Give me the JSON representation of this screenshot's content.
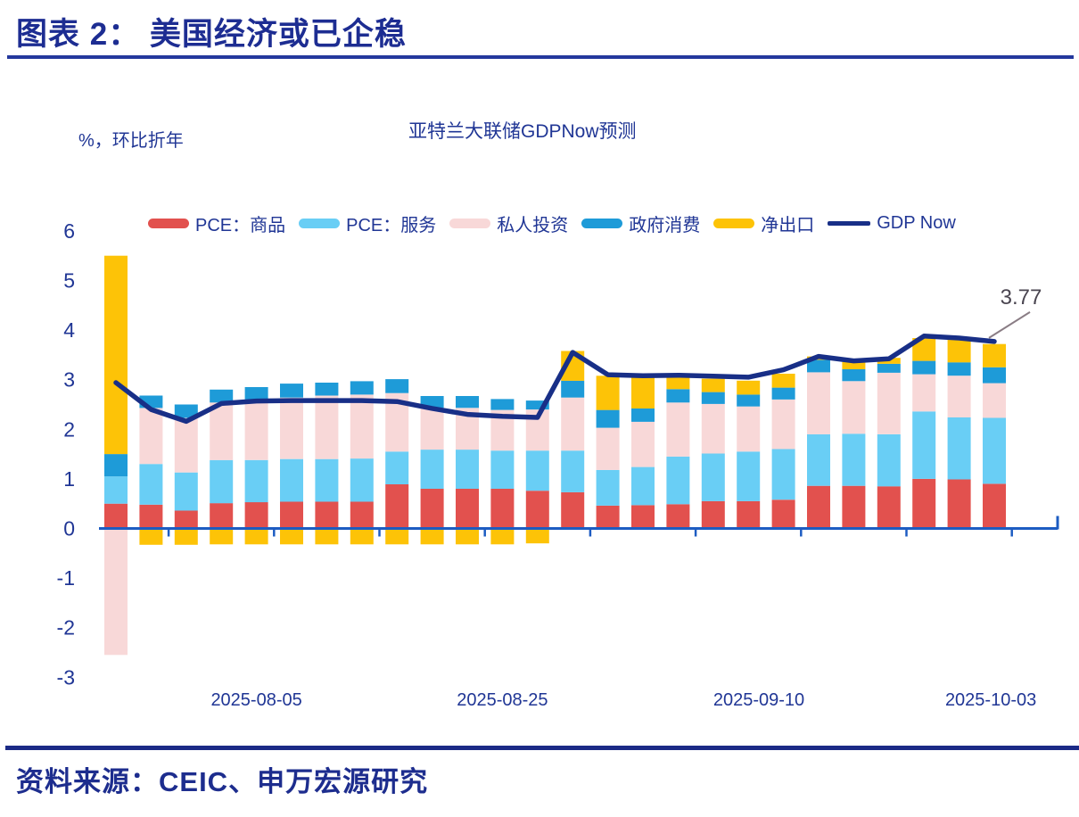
{
  "header": {
    "title": "图表 2：  美国经济或已企稳"
  },
  "chart": {
    "unit_label": "%，环比折年",
    "title": "亚特兰大联储GDPNow预测"
  },
  "footer": {
    "source": "资料来源：CEIC、申万宏源研究"
  },
  "colors": {
    "title_text": "#1d2d92",
    "label_text": "#203695",
    "axis_line": "#1d5cc2",
    "gdp_line": "#182f87",
    "annotation_text": "#4a4550",
    "annotation_leader": "#8a7d85"
  },
  "chart_data": {
    "type": "bar",
    "stacked": true,
    "n_bars": 26,
    "title": "亚特兰大联储GDPNow预测",
    "ylabel": "%，环比折年",
    "ylim": [
      -3,
      6
    ],
    "yticks": [
      6,
      5,
      4,
      3,
      2,
      1,
      0,
      -1,
      -2,
      -3
    ],
    "grid": false,
    "legend_position": "top",
    "series": [
      {
        "name": "PCE：商品",
        "color": "#e2514e",
        "values": [
          0.5,
          0.48,
          0.36,
          0.51,
          0.53,
          0.54,
          0.54,
          0.54,
          0.89,
          0.8,
          0.8,
          0.8,
          0.76,
          0.73,
          0.46,
          0.47,
          0.49,
          0.55,
          0.55,
          0.58,
          0.86,
          0.86,
          0.85,
          1.0,
          0.99,
          0.9
        ]
      },
      {
        "name": "PCE：服务",
        "color": "#69cef5",
        "values": [
          0.55,
          0.82,
          0.77,
          0.87,
          0.85,
          0.86,
          0.86,
          0.87,
          0.66,
          0.79,
          0.79,
          0.77,
          0.81,
          0.84,
          0.72,
          0.77,
          0.96,
          0.96,
          1.0,
          1.02,
          1.04,
          1.05,
          1.05,
          1.36,
          1.25,
          1.33
        ]
      },
      {
        "name": "私人投资",
        "color": "#f8d8d8",
        "values": [
          -2.55,
          1.13,
          1.1,
          1.16,
          1.22,
          1.24,
          1.28,
          1.29,
          1.18,
          0.84,
          0.84,
          0.82,
          0.83,
          1.07,
          0.85,
          0.91,
          1.09,
          1.0,
          0.91,
          1.0,
          1.25,
          1.06,
          1.24,
          0.75,
          0.84,
          0.7
        ]
      },
      {
        "name": "政府消费",
        "color": "#1e9bd8",
        "values": [
          0.45,
          0.25,
          0.27,
          0.26,
          0.25,
          0.28,
          0.26,
          0.27,
          0.28,
          0.24,
          0.24,
          0.22,
          0.18,
          0.34,
          0.36,
          0.27,
          0.27,
          0.24,
          0.24,
          0.24,
          0.25,
          0.24,
          0.18,
          0.27,
          0.27,
          0.32
        ]
      },
      {
        "name": "净出口",
        "color": "#fdc307",
        "values": [
          4.0,
          -0.33,
          -0.33,
          -0.32,
          -0.32,
          -0.32,
          -0.32,
          -0.32,
          -0.32,
          -0.32,
          -0.32,
          -0.32,
          -0.3,
          0.6,
          0.69,
          0.64,
          0.27,
          0.27,
          0.28,
          0.28,
          0.07,
          0.15,
          0.12,
          0.46,
          0.51,
          0.47
        ]
      }
    ],
    "line_series": {
      "name": "GDP Now",
      "color": "#182f87",
      "values": [
        2.94,
        2.4,
        2.16,
        2.52,
        2.57,
        2.58,
        2.58,
        2.58,
        2.56,
        2.42,
        2.3,
        2.26,
        2.24,
        3.55,
        3.1,
        3.08,
        3.09,
        3.07,
        3.05,
        3.2,
        3.47,
        3.38,
        3.42,
        3.88,
        3.84,
        3.77
      ]
    },
    "x_axis_labels": [
      {
        "text": "2025-08-05",
        "at_bar": 5
      },
      {
        "text": "2025-08-25",
        "at_bar": 12
      },
      {
        "text": "2025-09-10",
        "at_bar": 19.3
      },
      {
        "text": "2025-10-03",
        "at_bar": 25.9
      }
    ],
    "annotation": {
      "text": "3.77",
      "at_bar": 26
    }
  }
}
